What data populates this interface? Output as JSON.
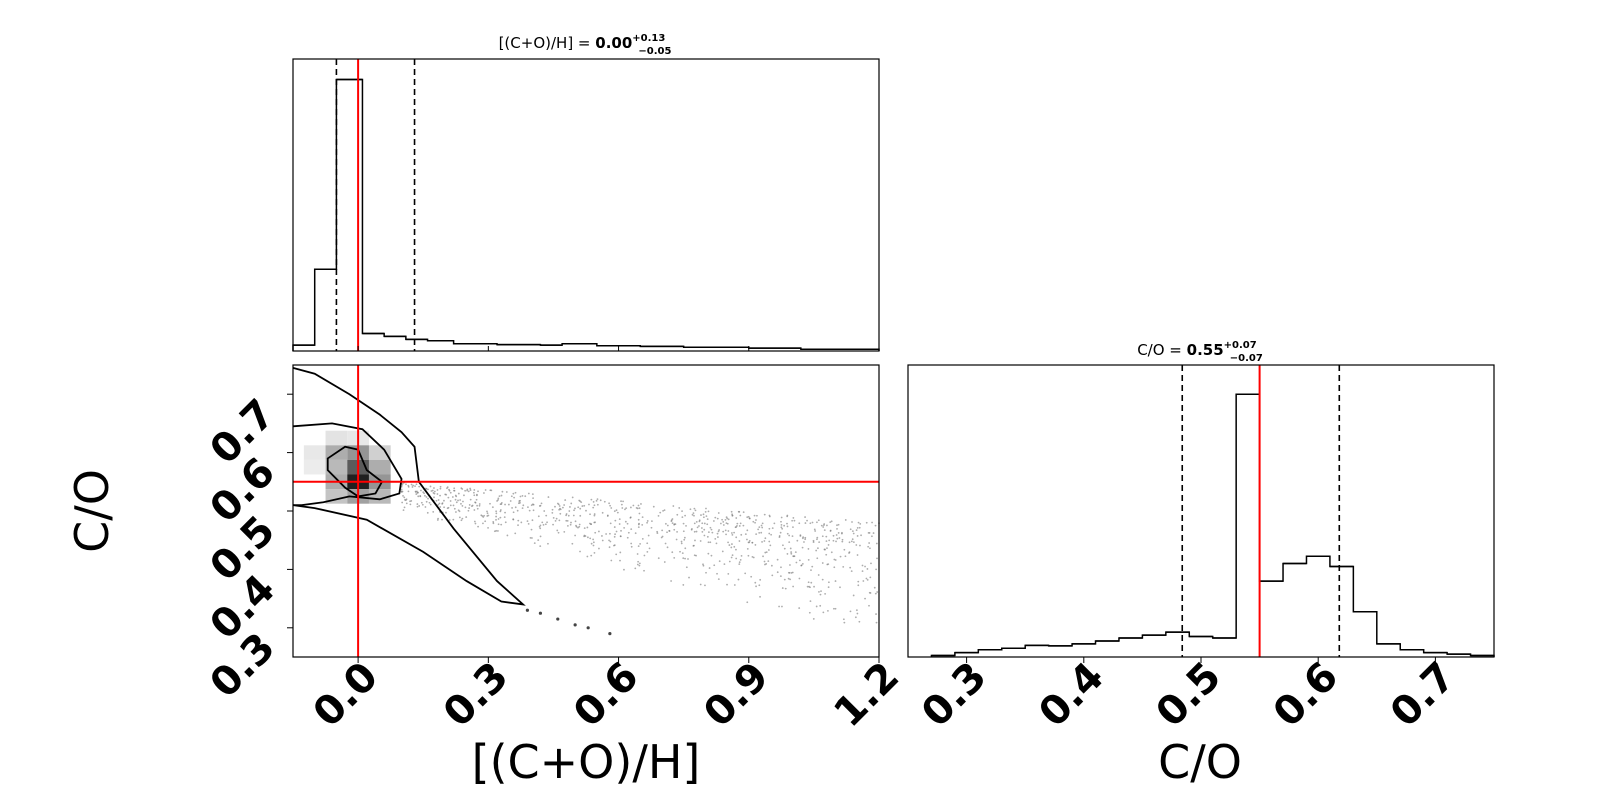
{
  "chart_data": [
    {
      "type": "histogram",
      "panel": "top-left",
      "title_prefix": "[(C+O)/H] = ",
      "title_value": "0.00",
      "title_plus": "+0.13",
      "title_minus": "−0.05",
      "xlim": [
        -0.15,
        1.2
      ],
      "bins": [
        {
          "x0": -0.15,
          "x1": -0.1,
          "h": 0.02
        },
        {
          "x0": -0.1,
          "x1": -0.05,
          "h": 0.28
        },
        {
          "x0": -0.05,
          "x1": 0.01,
          "h": 0.93
        },
        {
          "x0": 0.01,
          "x1": 0.06,
          "h": 0.06
        },
        {
          "x0": 0.06,
          "x1": 0.11,
          "h": 0.05
        },
        {
          "x0": 0.11,
          "x1": 0.16,
          "h": 0.04
        },
        {
          "x0": 0.16,
          "x1": 0.22,
          "h": 0.035
        },
        {
          "x0": 0.22,
          "x1": 0.32,
          "h": 0.025
        },
        {
          "x0": 0.32,
          "x1": 0.42,
          "h": 0.022
        },
        {
          "x0": 0.42,
          "x1": 0.47,
          "h": 0.02
        },
        {
          "x0": 0.47,
          "x1": 0.55,
          "h": 0.025
        },
        {
          "x0": 0.55,
          "x1": 0.65,
          "h": 0.018
        },
        {
          "x0": 0.65,
          "x1": 0.75,
          "h": 0.016
        },
        {
          "x0": 0.75,
          "x1": 0.9,
          "h": 0.013
        },
        {
          "x0": 0.9,
          "x1": 1.02,
          "h": 0.01
        },
        {
          "x0": 1.02,
          "x1": 1.2,
          "h": 0.006
        }
      ],
      "quantiles": [
        -0.05,
        0.13
      ],
      "truth": 0.0
    },
    {
      "type": "scatter",
      "panel": "bottom-left",
      "xlabel": "[(C+O)/H]",
      "ylabel": "C/O",
      "xlim": [
        -0.15,
        1.2
      ],
      "ylim": [
        0.25,
        0.75
      ],
      "xticks": [
        "0.0",
        "0.3",
        "0.6",
        "0.9",
        "1.2"
      ],
      "xtick_values": [
        0.0,
        0.3,
        0.6,
        0.9,
        1.2
      ],
      "yticks": [
        "0.3",
        "0.4",
        "0.5",
        "0.6",
        "0.7"
      ],
      "ytick_values": [
        0.3,
        0.4,
        0.5,
        0.6,
        0.7
      ],
      "truth": {
        "x": 0.0,
        "y": 0.55
      },
      "density_cells": [
        {
          "x": -0.05,
          "y": 0.625,
          "d": 0.12
        },
        {
          "x": 0.0,
          "y": 0.625,
          "d": 0.1
        },
        {
          "x": -0.1,
          "y": 0.6,
          "d": 0.1
        },
        {
          "x": -0.05,
          "y": 0.6,
          "d": 0.35
        },
        {
          "x": 0.0,
          "y": 0.6,
          "d": 0.45
        },
        {
          "x": 0.05,
          "y": 0.6,
          "d": 0.2
        },
        {
          "x": -0.1,
          "y": 0.575,
          "d": 0.08
        },
        {
          "x": -0.05,
          "y": 0.575,
          "d": 0.3
        },
        {
          "x": 0.0,
          "y": 0.575,
          "d": 0.7
        },
        {
          "x": 0.05,
          "y": 0.575,
          "d": 0.35
        },
        {
          "x": -0.05,
          "y": 0.55,
          "d": 0.35
        },
        {
          "x": 0.0,
          "y": 0.55,
          "d": 0.95
        },
        {
          "x": 0.05,
          "y": 0.55,
          "d": 0.45
        },
        {
          "x": -0.05,
          "y": 0.525,
          "d": 0.25
        },
        {
          "x": 0.0,
          "y": 0.525,
          "d": 0.4
        },
        {
          "x": 0.05,
          "y": 0.525,
          "d": 0.3
        }
      ],
      "contours": [
        [
          [
            -0.07,
            0.59
          ],
          [
            -0.03,
            0.61
          ],
          [
            0.0,
            0.605
          ],
          [
            0.02,
            0.57
          ],
          [
            0.055,
            0.55
          ],
          [
            0.04,
            0.53
          ],
          [
            0.0,
            0.525
          ],
          [
            -0.03,
            0.54
          ],
          [
            -0.07,
            0.57
          ]
        ],
        [
          [
            -0.15,
            0.645
          ],
          [
            -0.06,
            0.65
          ],
          [
            0.01,
            0.64
          ],
          [
            0.06,
            0.605
          ],
          [
            0.1,
            0.555
          ],
          [
            0.095,
            0.53
          ],
          [
            0.05,
            0.52
          ],
          [
            -0.02,
            0.525
          ],
          [
            -0.08,
            0.515
          ],
          [
            -0.13,
            0.51
          ],
          [
            -0.15,
            0.51
          ]
        ],
        [
          [
            -0.15,
            0.745
          ],
          [
            -0.1,
            0.735
          ],
          [
            -0.02,
            0.7
          ],
          [
            0.05,
            0.665
          ],
          [
            0.1,
            0.635
          ],
          [
            0.13,
            0.61
          ],
          [
            0.14,
            0.55
          ],
          [
            0.22,
            0.47
          ],
          [
            0.32,
            0.38
          ],
          [
            0.38,
            0.34
          ],
          [
            0.33,
            0.345
          ],
          [
            0.25,
            0.38
          ],
          [
            0.15,
            0.43
          ],
          [
            0.02,
            0.485
          ],
          [
            -0.1,
            0.505
          ],
          [
            -0.15,
            0.51
          ]
        ]
      ],
      "scatter_region": {
        "x": [
          0.1,
          1.2
        ],
        "y_low": [
          0.5,
          0.28
        ],
        "y_high": [
          0.55,
          0.48
        ]
      },
      "tail_points": [
        [
          0.39,
          0.33
        ],
        [
          0.42,
          0.325
        ],
        [
          0.46,
          0.315
        ],
        [
          0.5,
          0.305
        ],
        [
          0.53,
          0.3
        ],
        [
          0.58,
          0.29
        ]
      ]
    },
    {
      "type": "histogram",
      "panel": "bottom-right",
      "title_prefix": "C/O = ",
      "title_value": "0.55",
      "title_plus": "+0.07",
      "title_minus": "−0.07",
      "xlabel": "C/O",
      "xlim": [
        0.25,
        0.75
      ],
      "xticks": [
        "0.3",
        "0.4",
        "0.5",
        "0.6",
        "0.7"
      ],
      "xtick_values": [
        0.3,
        0.4,
        0.5,
        0.6,
        0.7
      ],
      "bins": [
        {
          "x0": 0.27,
          "x1": 0.29,
          "h": 0.005
        },
        {
          "x0": 0.29,
          "x1": 0.31,
          "h": 0.015
        },
        {
          "x0": 0.31,
          "x1": 0.33,
          "h": 0.025
        },
        {
          "x0": 0.33,
          "x1": 0.35,
          "h": 0.03
        },
        {
          "x0": 0.35,
          "x1": 0.37,
          "h": 0.04
        },
        {
          "x0": 0.37,
          "x1": 0.39,
          "h": 0.038
        },
        {
          "x0": 0.39,
          "x1": 0.41,
          "h": 0.045
        },
        {
          "x0": 0.41,
          "x1": 0.43,
          "h": 0.055
        },
        {
          "x0": 0.43,
          "x1": 0.45,
          "h": 0.065
        },
        {
          "x0": 0.45,
          "x1": 0.47,
          "h": 0.075
        },
        {
          "x0": 0.47,
          "x1": 0.49,
          "h": 0.085
        },
        {
          "x0": 0.49,
          "x1": 0.51,
          "h": 0.07
        },
        {
          "x0": 0.51,
          "x1": 0.53,
          "h": 0.065
        },
        {
          "x0": 0.53,
          "x1": 0.55,
          "h": 0.9
        },
        {
          "x0": 0.55,
          "x1": 0.57,
          "h": 0.26
        },
        {
          "x0": 0.57,
          "x1": 0.59,
          "h": 0.32
        },
        {
          "x0": 0.59,
          "x1": 0.61,
          "h": 0.345
        },
        {
          "x0": 0.61,
          "x1": 0.63,
          "h": 0.31
        },
        {
          "x0": 0.63,
          "x1": 0.65,
          "h": 0.155
        },
        {
          "x0": 0.65,
          "x1": 0.67,
          "h": 0.045
        },
        {
          "x0": 0.67,
          "x1": 0.69,
          "h": 0.025
        },
        {
          "x0": 0.69,
          "x1": 0.71,
          "h": 0.015
        },
        {
          "x0": 0.71,
          "x1": 0.73,
          "h": 0.01
        },
        {
          "x0": 0.73,
          "x1": 0.75,
          "h": 0.005
        }
      ],
      "quantiles": [
        0.484,
        0.618
      ],
      "truth": 0.55
    }
  ],
  "colors": {
    "truth": "#ff0000",
    "line": "#000000",
    "density": "#000000"
  }
}
